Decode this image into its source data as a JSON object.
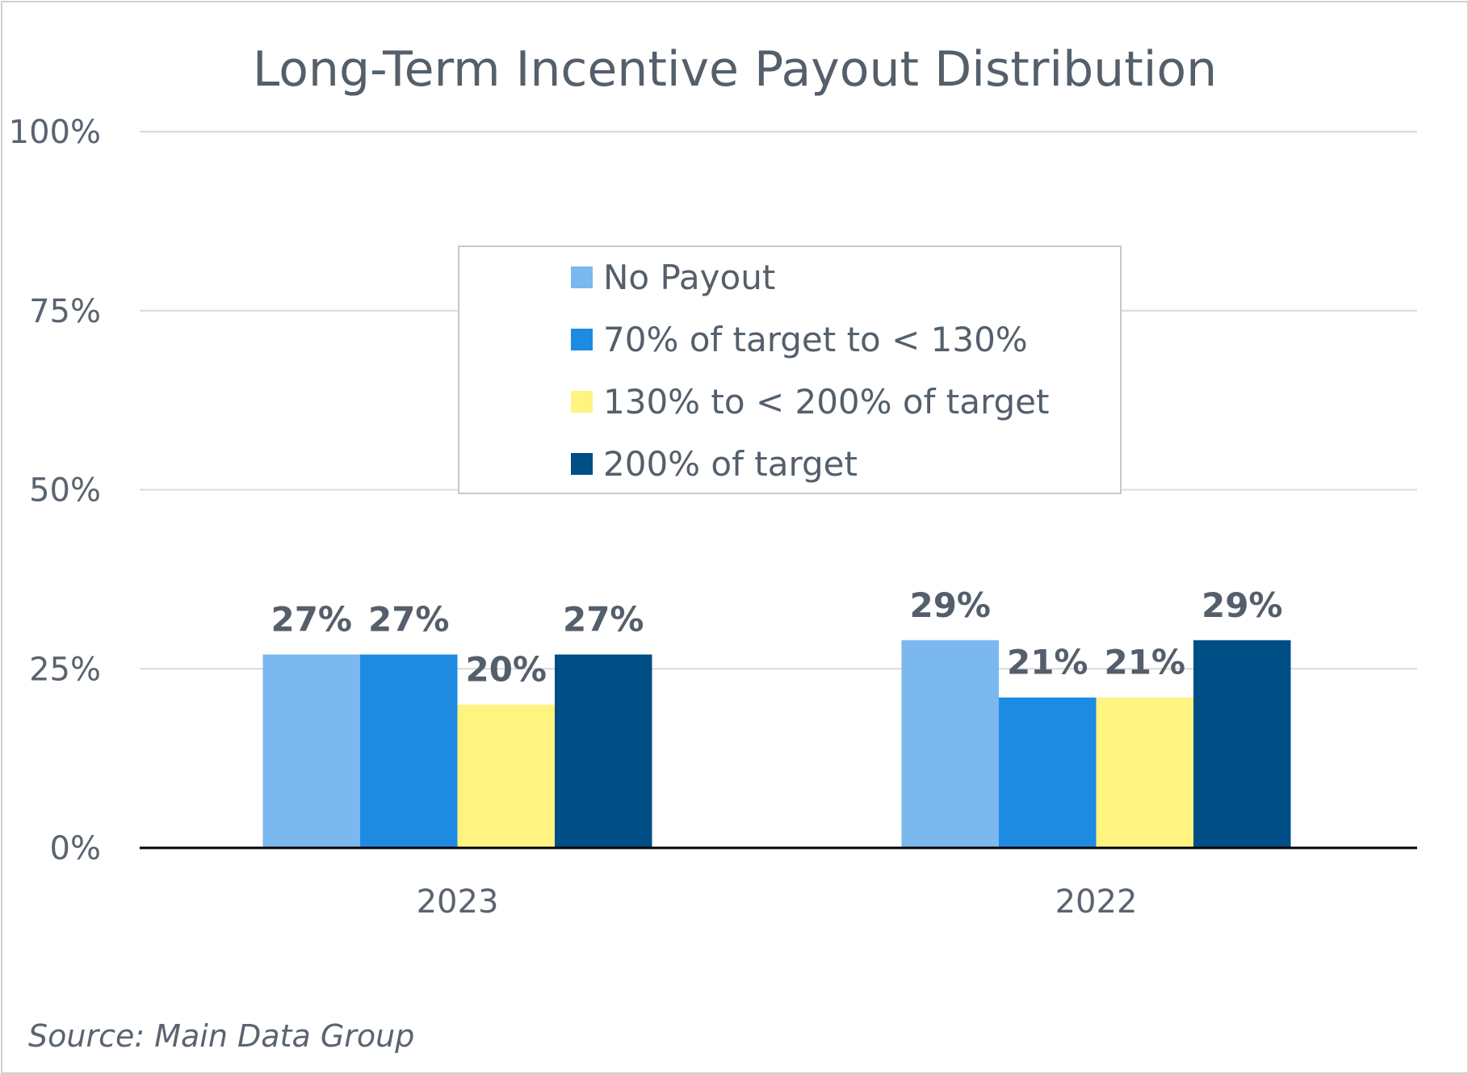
{
  "chart_data": {
    "type": "bar",
    "title": "Long-Term Incentive Payout Distribution",
    "categories": [
      "2023",
      "2022"
    ],
    "series": [
      {
        "name": "No Payout",
        "values": [
          27,
          29
        ],
        "labels": [
          "27%",
          "29%"
        ],
        "color": "#7ab8ef"
      },
      {
        "name": "70% of target to < 130%",
        "values": [
          27,
          21
        ],
        "labels": [
          "27%",
          "21%"
        ],
        "color": "#1e8be3"
      },
      {
        "name": "130% to < 200% of target",
        "values": [
          20,
          21
        ],
        "labels": [
          "20%",
          "21%"
        ],
        "color": "#fff480"
      },
      {
        "name": "200% of target",
        "values": [
          27,
          29
        ],
        "labels": [
          "27%",
          "29%"
        ],
        "color": "#004e86"
      }
    ],
    "ylim": [
      0,
      100
    ],
    "yticks": [
      0,
      25,
      50,
      75,
      100
    ],
    "ytick_labels": [
      "0%",
      "25%",
      "50%",
      "75%",
      "100%"
    ],
    "grid": true,
    "legend_position": "center"
  },
  "source": "Source: Main Data Group"
}
